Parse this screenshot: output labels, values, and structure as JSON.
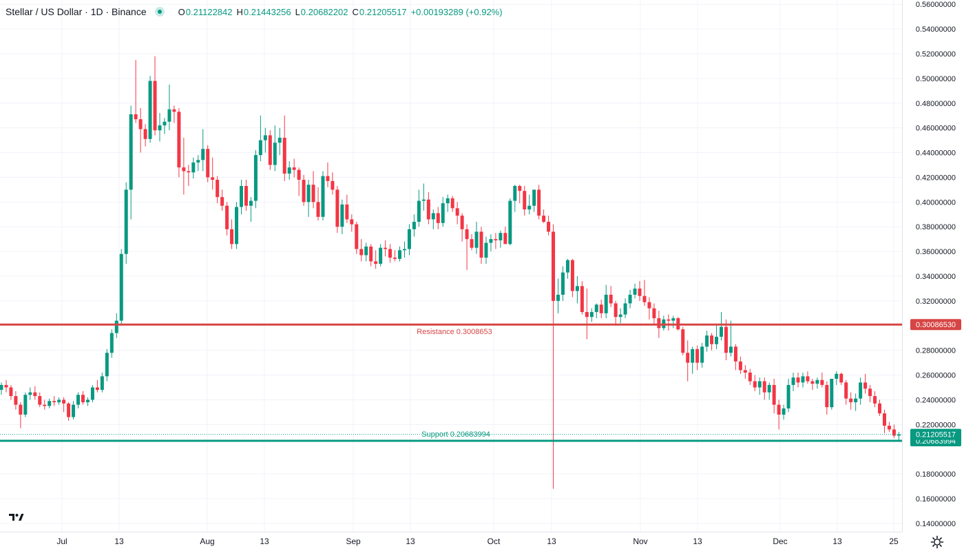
{
  "header": {
    "title": "Stellar / US Dollar · 1D · Binance",
    "open_key": "O",
    "open": "0.21122842",
    "high_key": "H",
    "high": "0.21443256",
    "low_key": "L",
    "low": "0.20682202",
    "close_key": "C",
    "close": "0.21205517",
    "change": "+0.00193289 (+0.92%)"
  },
  "colors": {
    "up": "#089981",
    "down": "#f23645",
    "resistance": "#d64545",
    "support": "#089981"
  },
  "icons": {
    "logo": "tradingview-logo-icon",
    "settings": "gear-icon"
  },
  "chart_data": {
    "type": "candlestick",
    "y_ticks": [
      "0.56000000",
      "0.54000000",
      "0.52000000",
      "0.50000000",
      "0.48000000",
      "0.46000000",
      "0.44000000",
      "0.42000000",
      "0.40000000",
      "0.38000000",
      "0.36000000",
      "0.34000000",
      "0.32000000",
      "0.28000000",
      "0.26000000",
      "0.24000000",
      "0.22000000",
      "0.18000000",
      "0.16000000",
      "0.14000000"
    ],
    "x_ticks": [
      "Jul",
      "13",
      "Aug",
      "13",
      "Sep",
      "13",
      "Oct",
      "13",
      "Nov",
      "13",
      "Dec",
      "13",
      "25"
    ],
    "ylim": [
      0.135,
      0.562
    ],
    "lines": [
      {
        "name": "resistance",
        "label": "Resistance 0.3008653",
        "price": 0.3008653,
        "axis_label": "0.30086530"
      },
      {
        "name": "support",
        "label": "Support 0.20683994",
        "price": 0.20683994,
        "axis_label": "0.20683994"
      }
    ],
    "last_price": {
      "price": 0.21205517,
      "axis_label": "0.21205517"
    },
    "candles": [
      [
        0.248,
        0.254,
        0.244,
        0.252
      ],
      [
        0.252,
        0.256,
        0.246,
        0.25
      ],
      [
        0.25,
        0.252,
        0.24,
        0.243
      ],
      [
        0.243,
        0.247,
        0.232,
        0.236
      ],
      [
        0.236,
        0.238,
        0.217,
        0.228
      ],
      [
        0.228,
        0.246,
        0.226,
        0.244
      ],
      [
        0.244,
        0.25,
        0.24,
        0.246
      ],
      [
        0.246,
        0.251,
        0.24,
        0.243
      ],
      [
        0.243,
        0.246,
        0.234,
        0.236
      ],
      [
        0.236,
        0.24,
        0.232,
        0.235
      ],
      [
        0.235,
        0.241,
        0.233,
        0.239
      ],
      [
        0.239,
        0.243,
        0.235,
        0.238
      ],
      [
        0.238,
        0.242,
        0.236,
        0.24
      ],
      [
        0.24,
        0.242,
        0.23,
        0.237
      ],
      [
        0.237,
        0.238,
        0.223,
        0.226
      ],
      [
        0.226,
        0.239,
        0.224,
        0.236
      ],
      [
        0.236,
        0.246,
        0.233,
        0.244
      ],
      [
        0.244,
        0.247,
        0.236,
        0.238
      ],
      [
        0.238,
        0.242,
        0.235,
        0.24
      ],
      [
        0.24,
        0.252,
        0.238,
        0.25
      ],
      [
        0.25,
        0.256,
        0.246,
        0.248
      ],
      [
        0.248,
        0.262,
        0.246,
        0.259
      ],
      [
        0.259,
        0.281,
        0.255,
        0.278
      ],
      [
        0.278,
        0.297,
        0.274,
        0.294
      ],
      [
        0.294,
        0.31,
        0.29,
        0.304
      ],
      [
        0.304,
        0.362,
        0.3,
        0.358
      ],
      [
        0.358,
        0.416,
        0.35,
        0.41
      ],
      [
        0.41,
        0.478,
        0.386,
        0.471
      ],
      [
        0.471,
        0.515,
        0.464,
        0.467
      ],
      [
        0.467,
        0.476,
        0.44,
        0.459
      ],
      [
        0.459,
        0.463,
        0.445,
        0.451
      ],
      [
        0.451,
        0.502,
        0.448,
        0.498
      ],
      [
        0.498,
        0.518,
        0.454,
        0.458
      ],
      [
        0.458,
        0.472,
        0.449,
        0.462
      ],
      [
        0.462,
        0.468,
        0.455,
        0.465
      ],
      [
        0.465,
        0.495,
        0.458,
        0.475
      ],
      [
        0.475,
        0.478,
        0.464,
        0.473
      ],
      [
        0.473,
        0.476,
        0.42,
        0.428
      ],
      [
        0.428,
        0.452,
        0.406,
        0.425
      ],
      [
        0.425,
        0.43,
        0.413,
        0.424
      ],
      [
        0.424,
        0.436,
        0.419,
        0.432
      ],
      [
        0.432,
        0.438,
        0.425,
        0.434
      ],
      [
        0.434,
        0.459,
        0.425,
        0.443
      ],
      [
        0.443,
        0.446,
        0.416,
        0.42
      ],
      [
        0.42,
        0.436,
        0.41,
        0.418
      ],
      [
        0.418,
        0.421,
        0.399,
        0.404
      ],
      [
        0.404,
        0.41,
        0.393,
        0.397
      ],
      [
        0.397,
        0.4,
        0.373,
        0.378
      ],
      [
        0.378,
        0.386,
        0.362,
        0.366
      ],
      [
        0.366,
        0.4,
        0.362,
        0.396
      ],
      [
        0.396,
        0.418,
        0.39,
        0.413
      ],
      [
        0.413,
        0.418,
        0.393,
        0.397
      ],
      [
        0.397,
        0.404,
        0.384,
        0.401
      ],
      [
        0.401,
        0.442,
        0.395,
        0.438
      ],
      [
        0.438,
        0.47,
        0.433,
        0.45
      ],
      [
        0.45,
        0.46,
        0.44,
        0.454
      ],
      [
        0.454,
        0.458,
        0.426,
        0.43
      ],
      [
        0.43,
        0.462,
        0.425,
        0.448
      ],
      [
        0.448,
        0.46,
        0.438,
        0.452
      ],
      [
        0.452,
        0.47,
        0.417,
        0.423
      ],
      [
        0.423,
        0.433,
        0.418,
        0.428
      ],
      [
        0.428,
        0.435,
        0.42,
        0.426
      ],
      [
        0.426,
        0.428,
        0.405,
        0.418
      ],
      [
        0.418,
        0.422,
        0.397,
        0.4
      ],
      [
        0.4,
        0.418,
        0.388,
        0.414
      ],
      [
        0.414,
        0.425,
        0.395,
        0.4
      ],
      [
        0.4,
        0.412,
        0.385,
        0.388
      ],
      [
        0.388,
        0.425,
        0.385,
        0.421
      ],
      [
        0.421,
        0.432,
        0.412,
        0.417
      ],
      [
        0.417,
        0.424,
        0.406,
        0.41
      ],
      [
        0.41,
        0.413,
        0.375,
        0.38
      ],
      [
        0.38,
        0.402,
        0.374,
        0.398
      ],
      [
        0.398,
        0.406,
        0.383,
        0.386
      ],
      [
        0.386,
        0.39,
        0.376,
        0.382
      ],
      [
        0.382,
        0.384,
        0.358,
        0.362
      ],
      [
        0.362,
        0.37,
        0.352,
        0.357
      ],
      [
        0.357,
        0.367,
        0.352,
        0.364
      ],
      [
        0.364,
        0.366,
        0.348,
        0.352
      ],
      [
        0.352,
        0.361,
        0.346,
        0.35
      ],
      [
        0.35,
        0.366,
        0.348,
        0.363
      ],
      [
        0.363,
        0.369,
        0.356,
        0.362
      ],
      [
        0.362,
        0.366,
        0.351,
        0.355
      ],
      [
        0.355,
        0.361,
        0.352,
        0.354
      ],
      [
        0.354,
        0.364,
        0.352,
        0.361
      ],
      [
        0.361,
        0.368,
        0.355,
        0.362
      ],
      [
        0.362,
        0.382,
        0.357,
        0.378
      ],
      [
        0.378,
        0.39,
        0.372,
        0.384
      ],
      [
        0.384,
        0.41,
        0.38,
        0.401
      ],
      [
        0.401,
        0.415,
        0.393,
        0.402
      ],
      [
        0.402,
        0.408,
        0.382,
        0.386
      ],
      [
        0.386,
        0.394,
        0.378,
        0.391
      ],
      [
        0.391,
        0.396,
        0.378,
        0.383
      ],
      [
        0.383,
        0.404,
        0.38,
        0.399
      ],
      [
        0.399,
        0.406,
        0.392,
        0.403
      ],
      [
        0.403,
        0.405,
        0.392,
        0.395
      ],
      [
        0.395,
        0.4,
        0.382,
        0.389
      ],
      [
        0.389,
        0.391,
        0.368,
        0.378
      ],
      [
        0.378,
        0.382,
        0.345,
        0.37
      ],
      [
        0.37,
        0.374,
        0.361,
        0.363
      ],
      [
        0.363,
        0.384,
        0.358,
        0.376
      ],
      [
        0.376,
        0.38,
        0.35,
        0.355
      ],
      [
        0.355,
        0.372,
        0.35,
        0.367
      ],
      [
        0.367,
        0.374,
        0.36,
        0.37
      ],
      [
        0.37,
        0.375,
        0.362,
        0.369
      ],
      [
        0.369,
        0.377,
        0.363,
        0.375
      ],
      [
        0.375,
        0.38,
        0.367,
        0.366
      ],
      [
        0.366,
        0.403,
        0.365,
        0.401
      ],
      [
        0.401,
        0.414,
        0.392,
        0.413
      ],
      [
        0.413,
        0.414,
        0.399,
        0.409
      ],
      [
        0.409,
        0.413,
        0.389,
        0.394
      ],
      [
        0.394,
        0.406,
        0.39,
        0.397
      ],
      [
        0.397,
        0.41,
        0.392,
        0.41
      ],
      [
        0.41,
        0.414,
        0.386,
        0.389
      ],
      [
        0.389,
        0.394,
        0.383,
        0.384
      ],
      [
        0.384,
        0.389,
        0.373,
        0.376
      ],
      [
        0.376,
        0.382,
        0.168,
        0.32
      ],
      [
        0.32,
        0.338,
        0.31,
        0.325
      ],
      [
        0.325,
        0.348,
        0.32,
        0.343
      ],
      [
        0.343,
        0.354,
        0.338,
        0.353
      ],
      [
        0.353,
        0.354,
        0.323,
        0.328
      ],
      [
        0.328,
        0.34,
        0.318,
        0.332
      ],
      [
        0.332,
        0.336,
        0.309,
        0.311
      ],
      [
        0.311,
        0.33,
        0.289,
        0.307
      ],
      [
        0.307,
        0.314,
        0.303,
        0.311
      ],
      [
        0.311,
        0.318,
        0.306,
        0.317
      ],
      [
        0.317,
        0.321,
        0.306,
        0.31
      ],
      [
        0.31,
        0.333,
        0.306,
        0.325
      ],
      [
        0.325,
        0.332,
        0.315,
        0.318
      ],
      [
        0.318,
        0.32,
        0.3,
        0.307
      ],
      [
        0.307,
        0.314,
        0.302,
        0.309
      ],
      [
        0.309,
        0.322,
        0.306,
        0.318
      ],
      [
        0.318,
        0.329,
        0.314,
        0.325
      ],
      [
        0.325,
        0.334,
        0.322,
        0.33
      ],
      [
        0.33,
        0.336,
        0.32,
        0.324
      ],
      [
        0.324,
        0.337,
        0.316,
        0.319
      ],
      [
        0.319,
        0.323,
        0.305,
        0.314
      ],
      [
        0.314,
        0.318,
        0.3,
        0.306
      ],
      [
        0.306,
        0.312,
        0.29,
        0.298
      ],
      [
        0.298,
        0.308,
        0.296,
        0.305
      ],
      [
        0.305,
        0.309,
        0.296,
        0.304
      ],
      [
        0.304,
        0.308,
        0.298,
        0.306
      ],
      [
        0.306,
        0.307,
        0.296,
        0.297
      ],
      [
        0.297,
        0.299,
        0.276,
        0.278
      ],
      [
        0.278,
        0.288,
        0.255,
        0.27
      ],
      [
        0.27,
        0.283,
        0.261,
        0.281
      ],
      [
        0.281,
        0.284,
        0.264,
        0.27
      ],
      [
        0.27,
        0.286,
        0.266,
        0.283
      ],
      [
        0.283,
        0.296,
        0.279,
        0.292
      ],
      [
        0.292,
        0.294,
        0.28,
        0.285
      ],
      [
        0.285,
        0.3,
        0.281,
        0.291
      ],
      [
        0.291,
        0.311,
        0.288,
        0.299
      ],
      [
        0.299,
        0.305,
        0.272,
        0.278
      ],
      [
        0.278,
        0.304,
        0.275,
        0.283
      ],
      [
        0.283,
        0.285,
        0.264,
        0.271
      ],
      [
        0.271,
        0.275,
        0.261,
        0.264
      ],
      [
        0.264,
        0.268,
        0.257,
        0.262
      ],
      [
        0.262,
        0.265,
        0.252,
        0.255
      ],
      [
        0.255,
        0.26,
        0.247,
        0.25
      ],
      [
        0.25,
        0.258,
        0.244,
        0.255
      ],
      [
        0.255,
        0.258,
        0.24,
        0.246
      ],
      [
        0.246,
        0.254,
        0.24,
        0.252
      ],
      [
        0.252,
        0.257,
        0.229,
        0.236
      ],
      [
        0.236,
        0.24,
        0.216,
        0.228
      ],
      [
        0.228,
        0.236,
        0.224,
        0.233
      ],
      [
        0.233,
        0.257,
        0.23,
        0.252
      ],
      [
        0.252,
        0.262,
        0.247,
        0.258
      ],
      [
        0.258,
        0.262,
        0.25,
        0.254
      ],
      [
        0.254,
        0.262,
        0.25,
        0.259
      ],
      [
        0.259,
        0.263,
        0.253,
        0.255
      ],
      [
        0.255,
        0.257,
        0.248,
        0.253
      ],
      [
        0.253,
        0.258,
        0.249,
        0.256
      ],
      [
        0.256,
        0.262,
        0.25,
        0.252
      ],
      [
        0.252,
        0.255,
        0.228,
        0.234
      ],
      [
        0.234,
        0.256,
        0.232,
        0.257
      ],
      [
        0.257,
        0.263,
        0.252,
        0.261
      ],
      [
        0.261,
        0.262,
        0.252,
        0.254
      ],
      [
        0.254,
        0.256,
        0.236,
        0.241
      ],
      [
        0.241,
        0.246,
        0.232,
        0.238
      ],
      [
        0.238,
        0.245,
        0.231,
        0.241
      ],
      [
        0.241,
        0.258,
        0.236,
        0.254
      ],
      [
        0.254,
        0.261,
        0.245,
        0.249
      ],
      [
        0.249,
        0.252,
        0.238,
        0.243
      ],
      [
        0.243,
        0.247,
        0.234,
        0.237
      ],
      [
        0.237,
        0.24,
        0.227,
        0.229
      ],
      [
        0.229,
        0.232,
        0.213,
        0.219
      ],
      [
        0.219,
        0.222,
        0.214,
        0.216
      ],
      [
        0.216,
        0.22,
        0.209,
        0.211
      ],
      [
        0.211,
        0.214,
        0.207,
        0.212
      ]
    ]
  }
}
